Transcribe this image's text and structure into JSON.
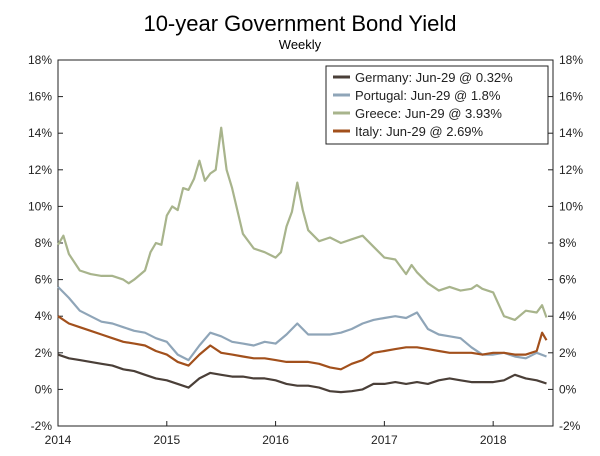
{
  "chart_data": {
    "type": "line",
    "title": "10-year Government Bond Yield",
    "subtitle": "Weekly",
    "xlabel": "",
    "ylabel": "",
    "x_ticks": [
      "2014",
      "2015",
      "2016",
      "2017",
      "2018"
    ],
    "y_ticks_left": [
      "18%",
      "16%",
      "14%",
      "12%",
      "10%",
      "8%",
      "6%",
      "4%",
      "2%",
      "0%",
      "-2%"
    ],
    "y_ticks_right": [
      "18%",
      "16%",
      "14%",
      "12%",
      "10%",
      "8%",
      "6%",
      "4%",
      "2%",
      "0%",
      "-2%"
    ],
    "ylim": [
      -2,
      18
    ],
    "xlim": [
      2014.0,
      2018.55
    ],
    "grid": false,
    "legend_position": "top-right",
    "series": [
      {
        "name": "Germany: Jun-29 @ 0.32%",
        "color": "#4a3f38",
        "x": [
          2014.0,
          2014.1,
          2014.2,
          2014.3,
          2014.4,
          2014.5,
          2014.6,
          2014.7,
          2014.8,
          2014.9,
          2015.0,
          2015.1,
          2015.2,
          2015.3,
          2015.4,
          2015.5,
          2015.6,
          2015.7,
          2015.8,
          2015.9,
          2016.0,
          2016.1,
          2016.2,
          2016.3,
          2016.4,
          2016.5,
          2016.6,
          2016.7,
          2016.8,
          2016.9,
          2017.0,
          2017.1,
          2017.2,
          2017.3,
          2017.4,
          2017.5,
          2017.6,
          2017.7,
          2017.8,
          2017.9,
          2018.0,
          2018.1,
          2018.2,
          2018.3,
          2018.4,
          2018.49
        ],
        "values": [
          1.9,
          1.7,
          1.6,
          1.5,
          1.4,
          1.3,
          1.1,
          1.0,
          0.8,
          0.6,
          0.5,
          0.3,
          0.1,
          0.6,
          0.9,
          0.8,
          0.7,
          0.7,
          0.6,
          0.6,
          0.5,
          0.3,
          0.2,
          0.2,
          0.1,
          -0.1,
          -0.15,
          -0.1,
          0.0,
          0.3,
          0.3,
          0.4,
          0.3,
          0.4,
          0.3,
          0.5,
          0.6,
          0.5,
          0.4,
          0.4,
          0.4,
          0.5,
          0.8,
          0.6,
          0.5,
          0.32
        ]
      },
      {
        "name": "Portugal: Jun-29 @ 1.8%",
        "color": "#8fa5b8",
        "x": [
          2014.0,
          2014.1,
          2014.2,
          2014.3,
          2014.4,
          2014.5,
          2014.6,
          2014.7,
          2014.8,
          2014.9,
          2015.0,
          2015.1,
          2015.2,
          2015.3,
          2015.4,
          2015.5,
          2015.6,
          2015.7,
          2015.8,
          2015.9,
          2016.0,
          2016.1,
          2016.2,
          2016.3,
          2016.4,
          2016.5,
          2016.6,
          2016.7,
          2016.8,
          2016.9,
          2017.0,
          2017.1,
          2017.2,
          2017.3,
          2017.4,
          2017.5,
          2017.6,
          2017.7,
          2017.8,
          2017.9,
          2018.0,
          2018.1,
          2018.2,
          2018.3,
          2018.4,
          2018.49
        ],
        "values": [
          5.6,
          5.0,
          4.3,
          4.0,
          3.7,
          3.6,
          3.4,
          3.2,
          3.1,
          2.8,
          2.6,
          1.9,
          1.6,
          2.4,
          3.1,
          2.9,
          2.6,
          2.5,
          2.4,
          2.6,
          2.5,
          3.0,
          3.6,
          3.0,
          3.0,
          3.0,
          3.1,
          3.3,
          3.6,
          3.8,
          3.9,
          4.0,
          3.9,
          4.2,
          3.3,
          3.0,
          2.9,
          2.8,
          2.3,
          1.9,
          1.9,
          2.0,
          1.8,
          1.7,
          2.0,
          1.8
        ]
      },
      {
        "name": "Greece: Jun-29 @ 3.93%",
        "color": "#a8b48c",
        "x": [
          2014.0,
          2014.05,
          2014.1,
          2014.2,
          2014.3,
          2014.4,
          2014.5,
          2014.6,
          2014.65,
          2014.7,
          2014.8,
          2014.85,
          2014.9,
          2014.95,
          2015.0,
          2015.05,
          2015.1,
          2015.15,
          2015.2,
          2015.25,
          2015.3,
          2015.35,
          2015.4,
          2015.45,
          2015.5,
          2015.55,
          2015.6,
          2015.7,
          2015.8,
          2015.9,
          2016.0,
          2016.05,
          2016.1,
          2016.15,
          2016.2,
          2016.25,
          2016.3,
          2016.4,
          2016.5,
          2016.6,
          2016.7,
          2016.8,
          2016.9,
          2017.0,
          2017.1,
          2017.2,
          2017.25,
          2017.3,
          2017.4,
          2017.5,
          2017.6,
          2017.7,
          2017.8,
          2017.85,
          2017.9,
          2018.0,
          2018.1,
          2018.2,
          2018.3,
          2018.4,
          2018.45,
          2018.49
        ],
        "values": [
          7.9,
          8.4,
          7.4,
          6.5,
          6.3,
          6.2,
          6.2,
          6.0,
          5.8,
          6.0,
          6.5,
          7.5,
          8.0,
          7.9,
          9.5,
          10.0,
          9.8,
          11.0,
          10.9,
          11.5,
          12.5,
          11.4,
          11.8,
          12.0,
          14.3,
          12.0,
          11.0,
          8.5,
          7.7,
          7.5,
          7.2,
          7.5,
          8.9,
          9.7,
          11.3,
          9.8,
          8.7,
          8.1,
          8.3,
          8.0,
          8.2,
          8.4,
          7.8,
          7.2,
          7.1,
          6.3,
          6.8,
          6.4,
          5.8,
          5.4,
          5.6,
          5.4,
          5.5,
          5.7,
          5.5,
          5.3,
          4.0,
          3.8,
          4.3,
          4.2,
          4.6,
          3.93
        ]
      },
      {
        "name": "Italy: Jun-29 @ 2.69%",
        "color": "#a2501c",
        "x": [
          2014.0,
          2014.1,
          2014.2,
          2014.3,
          2014.4,
          2014.5,
          2014.6,
          2014.7,
          2014.8,
          2014.9,
          2015.0,
          2015.1,
          2015.2,
          2015.3,
          2015.4,
          2015.5,
          2015.6,
          2015.7,
          2015.8,
          2015.9,
          2016.0,
          2016.1,
          2016.2,
          2016.3,
          2016.4,
          2016.5,
          2016.6,
          2016.7,
          2016.8,
          2016.9,
          2017.0,
          2017.1,
          2017.2,
          2017.3,
          2017.4,
          2017.5,
          2017.6,
          2017.7,
          2017.8,
          2017.9,
          2018.0,
          2018.1,
          2018.2,
          2018.3,
          2018.35,
          2018.4,
          2018.45,
          2018.49
        ],
        "values": [
          4.0,
          3.6,
          3.4,
          3.2,
          3.0,
          2.8,
          2.6,
          2.5,
          2.4,
          2.1,
          1.9,
          1.5,
          1.3,
          1.9,
          2.4,
          2.0,
          1.9,
          1.8,
          1.7,
          1.7,
          1.6,
          1.5,
          1.5,
          1.5,
          1.4,
          1.2,
          1.1,
          1.4,
          1.6,
          2.0,
          2.1,
          2.2,
          2.3,
          2.3,
          2.2,
          2.1,
          2.0,
          2.0,
          2.0,
          1.9,
          2.0,
          2.0,
          1.9,
          1.9,
          2.0,
          2.1,
          3.1,
          2.69
        ]
      }
    ]
  }
}
